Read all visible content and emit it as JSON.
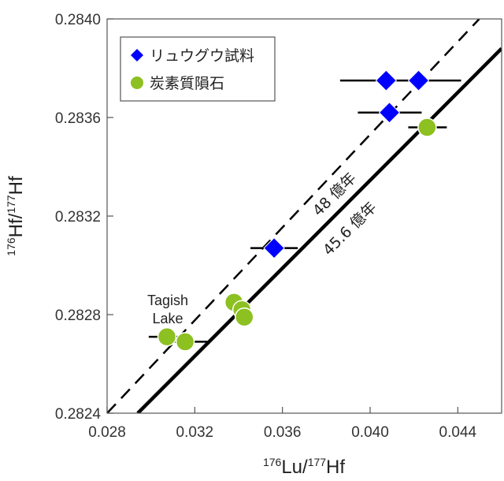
{
  "chart_data": {
    "type": "scatter",
    "title": "",
    "xlabel": "176Lu/177Hf",
    "ylabel": "176Hf/177Hf",
    "xlabel_parts": {
      "sup1": "176",
      "base1": "Lu/",
      "sup2": "177",
      "base2": "Hf"
    },
    "ylabel_parts": {
      "sup1": "176",
      "base1": "Hf/",
      "sup2": "177",
      "base2": "Hf"
    },
    "xlim": [
      0.028,
      0.046
    ],
    "ylim": [
      0.2824,
      0.284
    ],
    "x_ticks": [
      "0.028",
      "0.032",
      "0.036",
      "0.040",
      "0.044"
    ],
    "y_ticks": [
      "0.2824",
      "0.2828",
      "0.2832",
      "0.2836",
      "0.2840"
    ],
    "grid": false,
    "legend_position": "upper-left",
    "legend": [
      {
        "label": "リュウグウ試料",
        "marker": "diamond",
        "color": "#0000ff"
      },
      {
        "label": "炭素質隕石",
        "marker": "circle",
        "color": "#8dc021"
      }
    ],
    "series": [
      {
        "name": "リュウグウ試料",
        "marker": "diamond",
        "color": "#0000ff",
        "points": [
          {
            "x": 0.04073,
            "y": 0.28375,
            "xerr_low": 0.03863,
            "xerr_high": 0.04133
          },
          {
            "x": 0.04221,
            "y": 0.28375,
            "xerr_low": 0.04133,
            "xerr_high": 0.04415
          },
          {
            "x": 0.04088,
            "y": 0.28362,
            "xerr_low": 0.03944,
            "xerr_high": 0.04235
          },
          {
            "x": 0.03562,
            "y": 0.28307,
            "xerr_low": 0.03454,
            "xerr_high": 0.0367
          }
        ]
      },
      {
        "name": "炭素質隕石",
        "marker": "circle",
        "color": "#8dc021",
        "points": [
          {
            "x": 0.0426,
            "y": 0.28356,
            "xerr_low": 0.04174,
            "xerr_high": 0.0435
          },
          {
            "x": 0.03379,
            "y": 0.28285,
            "xerr_low": 0.0334,
            "xerr_high": 0.0342
          },
          {
            "x": 0.03415,
            "y": 0.28282,
            "xerr_low": 0.03375,
            "xerr_high": 0.03455
          },
          {
            "x": 0.03426,
            "y": 0.28279,
            "xerr_low": 0.03385,
            "xerr_high": 0.03465
          },
          {
            "x": 0.03073,
            "y": 0.28271,
            "xerr_low": 0.0299,
            "xerr_high": 0.0315
          },
          {
            "x": 0.03156,
            "y": 0.28269,
            "xerr_low": 0.0308,
            "xerr_high": 0.03265
          }
        ]
      }
    ],
    "reference_lines": [
      {
        "label": "48 億年",
        "style": "dashed",
        "x1": 0.028,
        "y1": 0.2824,
        "x2": 0.04498,
        "y2": 0.284
      },
      {
        "label": "45.6 億年",
        "style": "solid",
        "x1": 0.0294,
        "y1": 0.2824,
        "x2": 0.046,
        "y2": 0.28388
      }
    ],
    "annotations": [
      {
        "text": "Tagish Lake",
        "lines": [
          "Tagish",
          "Lake"
        ],
        "x": 0.03073,
        "y": 0.28271
      }
    ]
  }
}
